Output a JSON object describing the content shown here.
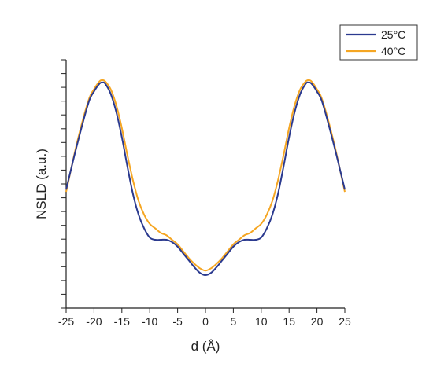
{
  "chart_data": {
    "type": "line",
    "title": "",
    "xlabel": "d (Å)",
    "ylabel": "NSLD (a.u.)",
    "xlim": [
      -25,
      25
    ],
    "ylim": [
      0,
      1
    ],
    "x_ticks": [
      -25,
      -20,
      -15,
      -10,
      -5,
      0,
      5,
      10,
      15,
      20,
      25
    ],
    "grid": false,
    "legend_position": "top-right",
    "series": [
      {
        "name": "25°C",
        "color": "#2b3a8f",
        "x": [
          -25,
          -23,
          -21,
          -20,
          -19,
          -18.5,
          -18,
          -17,
          -16,
          -15,
          -14,
          -13,
          -12,
          -11,
          -10,
          -9,
          -8,
          -7,
          -6,
          -5,
          -4,
          -3,
          -2,
          -1,
          0,
          1,
          2,
          3,
          4,
          5,
          6,
          7,
          8,
          9,
          10,
          11,
          12,
          13,
          14,
          15,
          16,
          17,
          18,
          18.5,
          19,
          20,
          21,
          23,
          25
        ],
        "y": [
          0.52,
          0.72,
          0.9,
          0.95,
          0.985,
          0.99,
          0.985,
          0.94,
          0.86,
          0.75,
          0.62,
          0.5,
          0.41,
          0.35,
          0.31,
          0.3,
          0.3,
          0.3,
          0.29,
          0.27,
          0.24,
          0.21,
          0.18,
          0.155,
          0.145,
          0.155,
          0.18,
          0.21,
          0.24,
          0.27,
          0.29,
          0.3,
          0.3,
          0.3,
          0.31,
          0.35,
          0.41,
          0.5,
          0.62,
          0.75,
          0.86,
          0.94,
          0.985,
          0.99,
          0.985,
          0.95,
          0.9,
          0.72,
          0.52
        ]
      },
      {
        "name": "40°C",
        "color": "#f5a623",
        "x": [
          -25,
          -23,
          -21,
          -20,
          -19,
          -18.5,
          -18,
          -17,
          -16,
          -15,
          -14,
          -13,
          -12,
          -11,
          -10,
          -9,
          -8,
          -7,
          -6,
          -5,
          -4,
          -3,
          -2,
          -1,
          0,
          1,
          2,
          3,
          4,
          5,
          6,
          7,
          8,
          9,
          10,
          11,
          12,
          13,
          14,
          15,
          16,
          17,
          18,
          18.5,
          19,
          20,
          21,
          23,
          25
        ],
        "y": [
          0.51,
          0.73,
          0.91,
          0.96,
          0.995,
          1.0,
          0.995,
          0.96,
          0.89,
          0.79,
          0.67,
          0.56,
          0.47,
          0.41,
          0.37,
          0.35,
          0.33,
          0.32,
          0.3,
          0.28,
          0.25,
          0.22,
          0.195,
          0.175,
          0.165,
          0.175,
          0.195,
          0.22,
          0.25,
          0.28,
          0.3,
          0.32,
          0.33,
          0.35,
          0.37,
          0.41,
          0.47,
          0.56,
          0.67,
          0.79,
          0.89,
          0.96,
          0.995,
          1.0,
          0.995,
          0.96,
          0.91,
          0.73,
          0.51
        ]
      }
    ]
  }
}
